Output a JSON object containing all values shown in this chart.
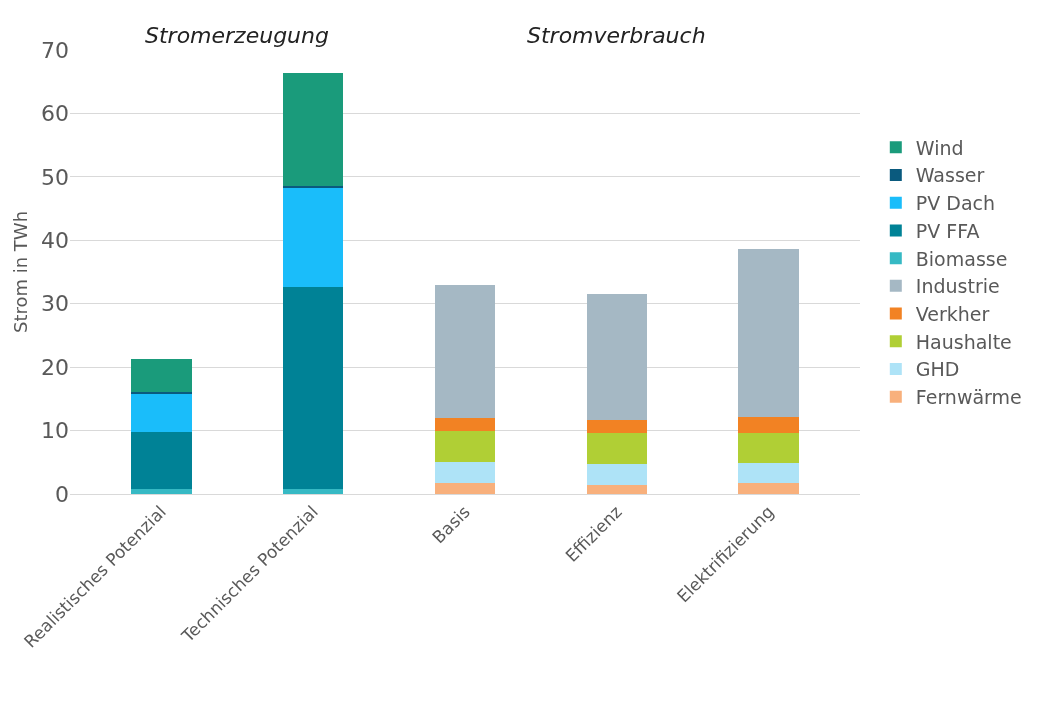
{
  "chart_data": {
    "type": "bar",
    "stacked": true,
    "ylabel": "Strom in TWh",
    "annotations": [
      "Stromerzeugung",
      "Stromverbrauch"
    ],
    "categories": [
      "Realistisches Potenzial",
      "Technisches Potenzial",
      "Basis",
      "Effizienz",
      "Elektrifizierung"
    ],
    "series": [
      {
        "name": "Biomasse",
        "color": "#36b9c4",
        "values": [
          0.8,
          0.8,
          null,
          null,
          null
        ]
      },
      {
        "name": "PV FFA",
        "color": "#008296",
        "values": [
          9.0,
          31.9,
          null,
          null,
          null
        ]
      },
      {
        "name": "PV Dach",
        "color": "#1abdfa",
        "values": [
          6.1,
          15.7,
          null,
          null,
          null
        ]
      },
      {
        "name": "Wasser",
        "color": "#0a5a7e",
        "values": [
          0.2,
          0.2,
          null,
          null,
          null
        ]
      },
      {
        "name": "Wind",
        "color": "#1a9b7b",
        "values": [
          5.2,
          17.8,
          null,
          null,
          null
        ]
      },
      {
        "name": "Fernwärme",
        "color": "#f8b07c",
        "values": [
          null,
          null,
          1.7,
          1.4,
          1.7
        ]
      },
      {
        "name": "GHD",
        "color": "#aee3f7",
        "values": [
          null,
          null,
          3.4,
          3.4,
          3.2
        ]
      },
      {
        "name": "Haushalte",
        "color": "#b0cf35",
        "values": [
          null,
          null,
          4.9,
          4.8,
          4.7
        ]
      },
      {
        "name": "Verkher",
        "color": "#f28223",
        "values": [
          null,
          null,
          2.0,
          2.1,
          2.6
        ]
      },
      {
        "name": "Industrie",
        "color": "#a5b8c4",
        "values": [
          null,
          null,
          20.9,
          19.8,
          26.4
        ]
      }
    ],
    "ylim": [
      0,
      70
    ],
    "yticks": [
      0,
      10,
      20,
      30,
      40,
      50,
      60,
      70
    ],
    "grid": "y",
    "legend": "right"
  }
}
